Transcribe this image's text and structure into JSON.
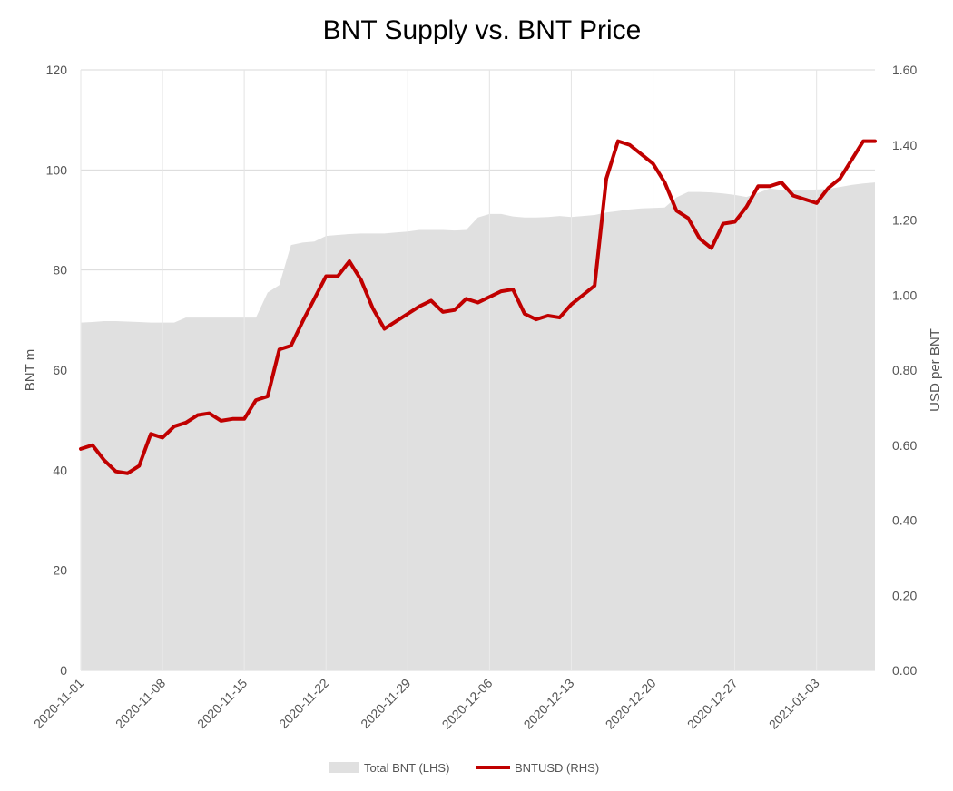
{
  "chart_data": {
    "type": "area",
    "title": "BNT Supply vs. BNT Price",
    "x_tick_labels": [
      "2020-11-01",
      "2020-11-08",
      "2020-11-15",
      "2020-11-22",
      "2020-11-29",
      "2020-12-06",
      "2020-12-13",
      "2020-12-20",
      "2020-12-27",
      "2021-01-03"
    ],
    "y_left": {
      "label": "BNT m",
      "ticks": [
        "0",
        "20",
        "40",
        "60",
        "80",
        "100",
        "120"
      ],
      "ylim": [
        0,
        120
      ]
    },
    "y_right": {
      "label": "USD per BNT",
      "ticks": [
        "0.00",
        "0.20",
        "0.40",
        "0.60",
        "0.80",
        "1.00",
        "1.20",
        "1.40",
        "1.60"
      ],
      "ylim": [
        0,
        1.6
      ]
    },
    "grid": true,
    "legend_position": "bottom-center",
    "x": [
      "2020-11-01",
      "2020-11-02",
      "2020-11-03",
      "2020-11-04",
      "2020-11-05",
      "2020-11-06",
      "2020-11-07",
      "2020-11-08",
      "2020-11-09",
      "2020-11-10",
      "2020-11-11",
      "2020-11-12",
      "2020-11-13",
      "2020-11-14",
      "2020-11-15",
      "2020-11-16",
      "2020-11-17",
      "2020-11-18",
      "2020-11-19",
      "2020-11-20",
      "2020-11-21",
      "2020-11-22",
      "2020-11-23",
      "2020-11-24",
      "2020-11-25",
      "2020-11-26",
      "2020-11-27",
      "2020-11-28",
      "2020-11-29",
      "2020-11-30",
      "2020-12-01",
      "2020-12-02",
      "2020-12-03",
      "2020-12-04",
      "2020-12-05",
      "2020-12-06",
      "2020-12-07",
      "2020-12-08",
      "2020-12-09",
      "2020-12-10",
      "2020-12-11",
      "2020-12-12",
      "2020-12-13",
      "2020-12-14",
      "2020-12-15",
      "2020-12-16",
      "2020-12-17",
      "2020-12-18",
      "2020-12-19",
      "2020-12-20",
      "2020-12-21",
      "2020-12-22",
      "2020-12-23",
      "2020-12-24",
      "2020-12-25",
      "2020-12-26",
      "2020-12-27",
      "2020-12-28",
      "2020-12-29",
      "2020-12-30",
      "2020-12-31",
      "2021-01-01",
      "2021-01-02",
      "2021-01-03",
      "2021-01-04",
      "2021-01-05",
      "2021-01-06",
      "2021-01-07",
      "2021-01-08"
    ],
    "series": [
      {
        "name": "Total BNT (LHS)",
        "type": "area",
        "axis": "left",
        "color": "#e0e0e0",
        "values": [
          69.5,
          69.6,
          69.8,
          69.8,
          69.7,
          69.6,
          69.5,
          69.5,
          69.5,
          70.5,
          70.5,
          70.5,
          70.5,
          70.5,
          70.5,
          70.5,
          75.5,
          77,
          85,
          85.5,
          85.7,
          86.8,
          87,
          87.2,
          87.3,
          87.3,
          87.3,
          87.5,
          87.7,
          88,
          88,
          88,
          87.9,
          88,
          90.5,
          91.2,
          91.2,
          90.7,
          90.5,
          90.5,
          90.6,
          90.8,
          90.6,
          90.8,
          91,
          91.5,
          91.8,
          92.1,
          92.3,
          92.4,
          92.5,
          94.5,
          95.6,
          95.6,
          95.5,
          95.3,
          95,
          94.6,
          95.4,
          96.3,
          96,
          96,
          96,
          96.1,
          96.2,
          96.6,
          97,
          97.3,
          97.5
        ]
      },
      {
        "name": "BNTUSD (RHS)",
        "type": "line",
        "axis": "right",
        "color": "#c00000",
        "values": [
          0.59,
          0.6,
          0.56,
          0.53,
          0.525,
          0.545,
          0.63,
          0.62,
          0.65,
          0.66,
          0.68,
          0.685,
          0.665,
          0.67,
          0.67,
          0.72,
          0.73,
          0.855,
          0.865,
          0.93,
          0.99,
          1.05,
          1.05,
          1.09,
          1.04,
          0.965,
          0.91,
          0.93,
          0.95,
          0.97,
          0.985,
          0.955,
          0.96,
          0.99,
          0.98,
          0.995,
          1.01,
          1.015,
          0.95,
          0.935,
          0.945,
          0.94,
          0.975,
          1.0,
          1.025,
          1.31,
          1.41,
          1.4,
          1.375,
          1.35,
          1.3,
          1.225,
          1.205,
          1.15,
          1.125,
          1.19,
          1.195,
          1.235,
          1.29,
          1.29,
          1.3,
          1.265,
          1.255,
          1.245,
          1.285,
          1.31,
          1.36,
          1.41,
          1.41
        ]
      }
    ]
  }
}
